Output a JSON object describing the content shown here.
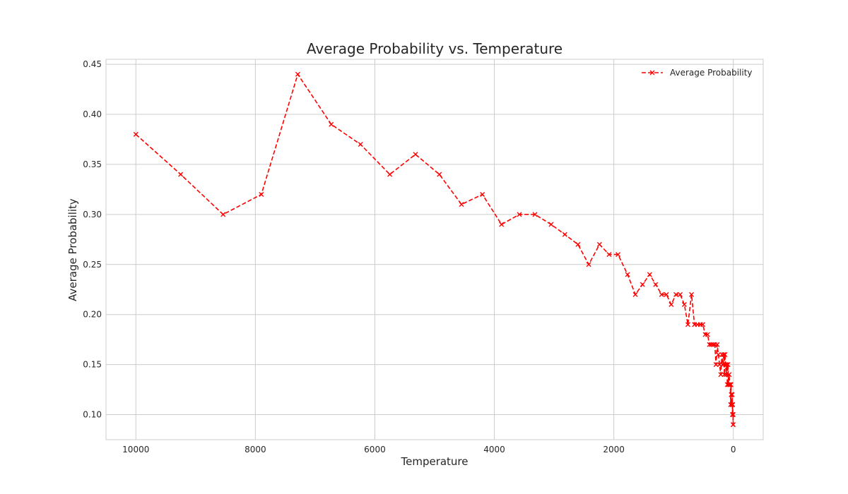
{
  "chart_data": {
    "type": "line",
    "title": "Average Probability vs. Temperature",
    "xlabel": "Temperature",
    "ylabel": "Average Probability",
    "xlim": [
      10500,
      -500
    ],
    "ylim": [
      0.075,
      0.455
    ],
    "x_inverted": true,
    "grid": true,
    "legend_position": "top-right",
    "xticks": [
      10000,
      8000,
      6000,
      4000,
      2000,
      0
    ],
    "xtick_labels": [
      "10000",
      "8000",
      "6000",
      "4000",
      "2000",
      "0"
    ],
    "yticks": [
      0.1,
      0.15,
      0.2,
      0.25,
      0.3,
      0.35,
      0.4,
      0.45
    ],
    "ytick_labels": [
      "0.10",
      "0.15",
      "0.20",
      "0.25",
      "0.30",
      "0.35",
      "0.40",
      "0.45"
    ],
    "series": [
      {
        "name": "Average Probability",
        "color": "#ff0000",
        "line_style": "dashed",
        "marker": "x",
        "x": [
          10000,
          9250,
          8540,
          7900,
          7290,
          6730,
          6240,
          5750,
          5320,
          4920,
          4550,
          4200,
          3880,
          3580,
          3320,
          3050,
          2820,
          2600,
          2420,
          2240,
          2080,
          1930,
          1770,
          1640,
          1520,
          1400,
          1300,
          1200,
          1120,
          1040,
          960,
          890,
          820,
          760,
          700,
          650,
          600,
          550,
          510,
          470,
          430,
          400,
          370,
          340,
          310,
          290,
          270,
          250,
          230,
          210,
          190,
          180,
          170,
          160,
          150,
          140,
          130,
          120,
          110,
          100,
          90,
          80,
          70,
          60,
          50,
          45,
          40,
          35,
          30,
          25,
          20,
          15,
          12,
          10,
          8,
          6,
          5,
          4,
          3,
          2
        ],
        "values": [
          0.38,
          0.34,
          0.3,
          0.32,
          0.44,
          0.39,
          0.37,
          0.34,
          0.36,
          0.34,
          0.31,
          0.32,
          0.29,
          0.3,
          0.3,
          0.29,
          0.28,
          0.27,
          0.25,
          0.27,
          0.26,
          0.26,
          0.24,
          0.22,
          0.23,
          0.24,
          0.23,
          0.22,
          0.22,
          0.21,
          0.22,
          0.22,
          0.21,
          0.19,
          0.22,
          0.19,
          0.19,
          0.19,
          0.19,
          0.18,
          0.18,
          0.17,
          0.17,
          0.17,
          0.17,
          0.15,
          0.17,
          0.16,
          0.15,
          0.14,
          0.16,
          0.15,
          0.15,
          0.16,
          0.14,
          0.16,
          0.15,
          0.14,
          0.15,
          0.13,
          0.15,
          0.13,
          0.14,
          0.13,
          0.13,
          0.11,
          0.13,
          0.12,
          0.12,
          0.11,
          0.12,
          0.1,
          0.11,
          0.11,
          0.1,
          0.1,
          0.1,
          0.09,
          0.1,
          0.09
        ]
      }
    ]
  }
}
